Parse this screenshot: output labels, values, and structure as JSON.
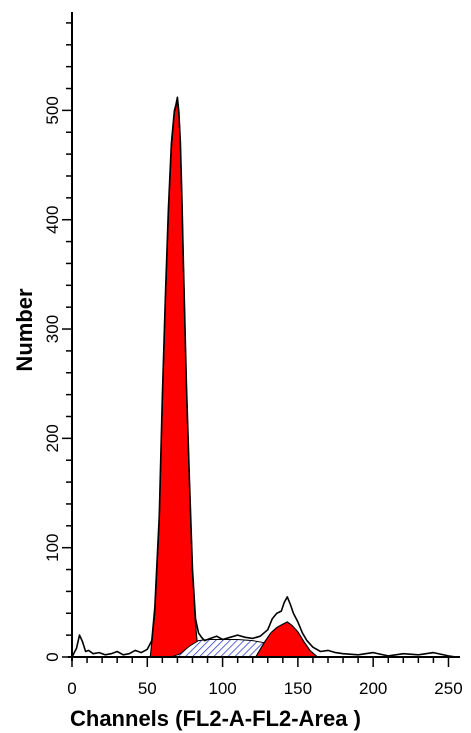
{
  "chart_data": {
    "type": "area",
    "xlabel": "Channels (FL2-A-FL2-Area )",
    "ylabel": "Number",
    "xlim": [
      0,
      255
    ],
    "ylim": [
      0,
      590
    ],
    "x_ticks": [
      0,
      50,
      100,
      150,
      200,
      250
    ],
    "y_ticks": [
      0,
      100,
      200,
      300,
      400,
      500
    ],
    "grid": false,
    "colors": {
      "g1_peak": "#ff0000",
      "g2_peak": "#ff0000",
      "s_phase": "#3340cc",
      "histogram": "#000000"
    },
    "series": [
      {
        "kind": "histogram",
        "x": [
          0,
          3,
          5,
          7,
          9,
          11,
          14,
          18,
          22,
          26,
          30,
          34,
          38,
          42,
          46,
          50,
          53,
          55,
          58,
          60,
          62,
          64,
          66,
          68,
          69,
          70,
          71,
          72,
          73,
          74,
          76,
          78,
          80,
          82,
          84,
          86,
          88,
          92,
          96,
          100,
          105,
          110,
          115,
          120,
          125,
          130,
          133,
          136,
          139,
          141,
          143,
          145,
          147,
          150,
          153,
          156,
          160,
          165,
          170,
          175,
          180,
          190,
          200,
          210,
          220,
          230,
          240,
          250,
          255
        ],
        "y": [
          0,
          8,
          20,
          14,
          5,
          6,
          3,
          4,
          2,
          3,
          5,
          2,
          3,
          6,
          4,
          7,
          15,
          45,
          130,
          240,
          330,
          410,
          470,
          500,
          505,
          512,
          498,
          470,
          420,
          360,
          250,
          160,
          80,
          35,
          22,
          18,
          15,
          17,
          19,
          16,
          18,
          20,
          18,
          17,
          19,
          25,
          35,
          40,
          42,
          50,
          55,
          48,
          40,
          32,
          22,
          15,
          9,
          5,
          6,
          4,
          3,
          2,
          4,
          1,
          3,
          2,
          4,
          1,
          0
        ]
      },
      {
        "kind": "g1-peak",
        "x": [
          52,
          55,
          58,
          60,
          62,
          64,
          66,
          68,
          69,
          70,
          71,
          72,
          73,
          74,
          76,
          78,
          80,
          82,
          84
        ],
        "y": [
          0,
          40,
          125,
          235,
          325,
          405,
          465,
          498,
          503,
          510,
          496,
          468,
          418,
          358,
          248,
          158,
          78,
          30,
          0
        ]
      },
      {
        "kind": "s-phase",
        "x": [
          66,
          72,
          78,
          84,
          90,
          100,
          110,
          120,
          128,
          134,
          140,
          146,
          152,
          160
        ],
        "y": [
          0,
          3,
          10,
          15,
          16,
          16,
          16,
          15,
          13,
          10,
          6,
          3,
          1,
          0
        ]
      },
      {
        "kind": "g2-peak",
        "x": [
          122,
          128,
          132,
          136,
          140,
          143,
          146,
          150,
          154,
          158,
          163
        ],
        "y": [
          0,
          14,
          22,
          27,
          30,
          32,
          29,
          23,
          14,
          6,
          0
        ]
      }
    ]
  }
}
